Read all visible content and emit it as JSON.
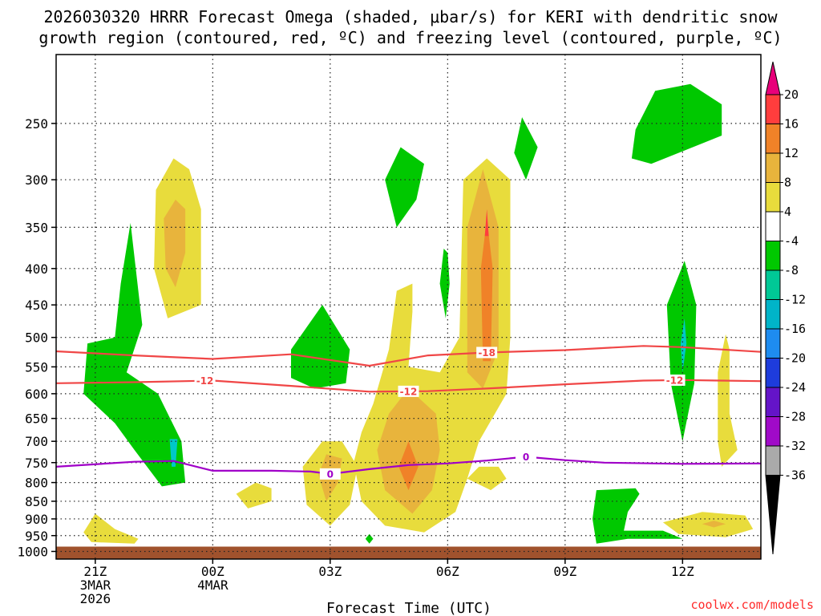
{
  "chart_data": {
    "type": "heatmap",
    "title_line1": "2026030320 HRRR Forecast Omega (shaded, μbar/s) for KERI with dendritic snow",
    "title_line2": "growth region (contoured, red, ºC) and freezing level (contoured, purple, ºC)",
    "xlabel": "Forecast Time (UTC)",
    "credit": "coolwx.com/models",
    "x_ticks": [
      {
        "hour": -3,
        "lines": [
          "21Z",
          "3MAR",
          "2026"
        ]
      },
      {
        "hour": 0,
        "lines": [
          "00Z",
          "4MAR"
        ]
      },
      {
        "hour": 3,
        "lines": [
          "03Z"
        ]
      },
      {
        "hour": 6,
        "lines": [
          "06Z"
        ]
      },
      {
        "hour": 9,
        "lines": [
          "09Z"
        ]
      },
      {
        "hour": 12,
        "lines": [
          "12Z"
        ]
      }
    ],
    "xlim_hours": [
      -4,
      14
    ],
    "y_levels_hPa": [
      "250",
      "300",
      "350",
      "400",
      "450",
      "500",
      "550",
      "600",
      "650",
      "700",
      "750",
      "800",
      "850",
      "900",
      "950",
      "1000"
    ],
    "ylim_hPa": [
      200,
      1025
    ],
    "colorbar": {
      "labels": [
        "20",
        "16",
        "12",
        "8",
        "4",
        "-4",
        "-8",
        "-12",
        "-16",
        "-20",
        "-24",
        "-28",
        "-32",
        "-36"
      ],
      "colors": [
        "#e8007a",
        "#ff3d3d",
        "#f08228",
        "#e8b43c",
        "#e8dc3c",
        "#ffffff",
        "#00c800",
        "#00c896",
        "#00b4c8",
        "#1e8cf0",
        "#1e3cdc",
        "#6414c8",
        "#a00ac8",
        "#aaaaaa",
        "#000000"
      ]
    },
    "contours": [
      {
        "name": "dendritic -18C",
        "label": "-18",
        "color": "#f04646",
        "label_hour": 7.0,
        "points": [
          [
            -4,
            523
          ],
          [
            -2,
            530
          ],
          [
            0,
            536
          ],
          [
            2,
            528
          ],
          [
            4,
            548
          ],
          [
            5.5,
            530
          ],
          [
            7,
            525
          ],
          [
            9,
            521
          ],
          [
            11,
            514
          ],
          [
            12,
            516
          ],
          [
            14,
            524
          ]
        ]
      },
      {
        "name": "dendritic -12C",
        "label": "-12",
        "color": "#f04646",
        "label_hour": -0.2,
        "label2_hour": 5.0,
        "label3_hour": 11.8,
        "points": [
          [
            -4,
            580
          ],
          [
            -2,
            578
          ],
          [
            0,
            575
          ],
          [
            2,
            585
          ],
          [
            4,
            596
          ],
          [
            5.5,
            595
          ],
          [
            7,
            590
          ],
          [
            9,
            582
          ],
          [
            11,
            575
          ],
          [
            12,
            574
          ],
          [
            14,
            576
          ]
        ]
      },
      {
        "name": "freezing level",
        "label": "0",
        "color": "#a000c8",
        "label_hour": 3.0,
        "label2_hour": 8.0,
        "points": [
          [
            -4,
            760
          ],
          [
            -2,
            748
          ],
          [
            -1,
            746
          ],
          [
            0,
            770
          ],
          [
            1.5,
            770
          ],
          [
            2.5,
            772
          ],
          [
            3,
            778
          ],
          [
            4,
            766
          ],
          [
            5,
            756
          ],
          [
            6,
            752
          ],
          [
            7,
            745
          ],
          [
            8,
            736
          ],
          [
            9,
            744
          ],
          [
            10,
            750
          ],
          [
            12,
            753
          ],
          [
            14,
            752
          ]
        ]
      }
    ],
    "omega_regions": [
      {
        "name": "green column 21Z",
        "value": -4,
        "points": [
          [
            -2.1,
            345
          ],
          [
            -2.35,
            420
          ],
          [
            -2.5,
            500
          ],
          [
            -3.2,
            510
          ],
          [
            -3.3,
            600
          ],
          [
            -2.5,
            660
          ],
          [
            -2,
            720
          ],
          [
            -1.3,
            810
          ],
          [
            -0.7,
            800
          ],
          [
            -0.8,
            700
          ],
          [
            -1.4,
            600
          ],
          [
            -2.2,
            560
          ],
          [
            -1.8,
            480
          ]
        ]
      },
      {
        "name": "cyan 21Z",
        "value": -12,
        "points": [
          [
            -1.1,
            695
          ],
          [
            -1.05,
            760
          ],
          [
            -0.95,
            760
          ],
          [
            -0.9,
            695
          ]
        ]
      },
      {
        "name": "yellow 23Z aloft",
        "value": 4,
        "points": [
          [
            -1.0,
            280
          ],
          [
            -1.45,
            310
          ],
          [
            -1.5,
            400
          ],
          [
            -1.15,
            470
          ],
          [
            -0.3,
            450
          ],
          [
            -0.3,
            330
          ],
          [
            -0.6,
            290
          ]
        ]
      },
      {
        "name": "orange 23Z aloft",
        "value": 8,
        "points": [
          [
            -0.95,
            320
          ],
          [
            -1.25,
            340
          ],
          [
            -1.2,
            400
          ],
          [
            -0.95,
            425
          ],
          [
            -0.7,
            380
          ],
          [
            -0.7,
            330
          ]
        ]
      },
      {
        "name": "yellow 21Z low",
        "value": 4,
        "points": [
          [
            -3.0,
            885
          ],
          [
            -3.3,
            940
          ],
          [
            -3.1,
            970
          ],
          [
            -2.0,
            975
          ],
          [
            -1.9,
            960
          ],
          [
            -2.5,
            930
          ]
        ]
      },
      {
        "name": "yellow 01Z",
        "value": 4,
        "points": [
          [
            1.1,
            800
          ],
          [
            0.6,
            830
          ],
          [
            0.9,
            870
          ],
          [
            1.5,
            850
          ],
          [
            1.5,
            815
          ]
        ]
      },
      {
        "name": "green 03Z aloft",
        "value": -4,
        "points": [
          [
            2.8,
            450
          ],
          [
            2.0,
            520
          ],
          [
            2.0,
            570
          ],
          [
            2.6,
            590
          ],
          [
            3.4,
            580
          ],
          [
            3.5,
            520
          ]
        ]
      },
      {
        "name": "yellow 03Z",
        "value": 4,
        "points": [
          [
            2.8,
            700
          ],
          [
            2.3,
            760
          ],
          [
            2.4,
            860
          ],
          [
            3.0,
            920
          ],
          [
            3.5,
            860
          ],
          [
            3.7,
            760
          ],
          [
            3.3,
            700
          ]
        ]
      },
      {
        "name": "orange 03Z",
        "value": 8,
        "points": [
          [
            2.9,
            730
          ],
          [
            2.7,
            780
          ],
          [
            2.9,
            850
          ],
          [
            3.2,
            800
          ],
          [
            3.3,
            740
          ]
        ]
      },
      {
        "name": "green 04Z pt",
        "value": -4,
        "points": [
          [
            4.0,
            945
          ],
          [
            3.9,
            960
          ],
          [
            4.0,
            975
          ],
          [
            4.1,
            960
          ]
        ]
      },
      {
        "name": "green 05Z aloft",
        "value": -4,
        "points": [
          [
            4.8,
            270
          ],
          [
            4.4,
            300
          ],
          [
            4.7,
            350
          ],
          [
            5.2,
            320
          ],
          [
            5.4,
            285
          ]
        ]
      },
      {
        "name": "green 06Z thin",
        "value": -4,
        "points": [
          [
            5.9,
            375
          ],
          [
            5.8,
            420
          ],
          [
            5.95,
            470
          ],
          [
            6.05,
            420
          ],
          [
            6.0,
            380
          ]
        ]
      },
      {
        "name": "green 08Z aloft",
        "value": -4,
        "points": [
          [
            7.9,
            245
          ],
          [
            7.7,
            275
          ],
          [
            8.0,
            300
          ],
          [
            8.3,
            270
          ]
        ]
      },
      {
        "name": "yellow big plume",
        "value": 4,
        "points": [
          [
            4.7,
            430
          ],
          [
            4.5,
            520
          ],
          [
            4.1,
            620
          ],
          [
            3.8,
            680
          ],
          [
            3.6,
            750
          ],
          [
            3.8,
            850
          ],
          [
            4.4,
            920
          ],
          [
            5.4,
            940
          ],
          [
            6.2,
            880
          ],
          [
            6.5,
            790
          ],
          [
            6.8,
            700
          ],
          [
            7.5,
            600
          ],
          [
            7.6,
            500
          ],
          [
            7.6,
            300
          ],
          [
            7.0,
            280
          ],
          [
            6.4,
            300
          ],
          [
            6.3,
            500
          ],
          [
            5.8,
            560
          ],
          [
            5.0,
            550
          ],
          [
            5.1,
            460
          ],
          [
            5.1,
            420
          ]
        ]
      },
      {
        "name": "orange plume",
        "value": 8,
        "points": [
          [
            5.0,
            590
          ],
          [
            4.5,
            640
          ],
          [
            4.2,
            720
          ],
          [
            4.4,
            820
          ],
          [
            5.1,
            885
          ],
          [
            5.6,
            820
          ],
          [
            5.8,
            720
          ],
          [
            5.7,
            640
          ]
        ]
      },
      {
        "name": "orange plume upper",
        "value": 8,
        "points": [
          [
            6.9,
            290
          ],
          [
            6.5,
            350
          ],
          [
            6.5,
            560
          ],
          [
            6.9,
            590
          ],
          [
            7.3,
            520
          ],
          [
            7.3,
            350
          ]
        ]
      },
      {
        "name": "red low core",
        "value": 12,
        "points": [
          [
            5.0,
            700
          ],
          [
            4.75,
            760
          ],
          [
            5.0,
            820
          ],
          [
            5.25,
            760
          ]
        ]
      },
      {
        "name": "red upper core",
        "value": 12,
        "points": [
          [
            7.0,
            340
          ],
          [
            6.85,
            400
          ],
          [
            6.9,
            540
          ],
          [
            7.1,
            540
          ],
          [
            7.15,
            400
          ]
        ]
      },
      {
        "name": "dark red core",
        "value": 16,
        "points": [
          [
            7.0,
            330
          ],
          [
            6.95,
            360
          ],
          [
            7.05,
            360
          ]
        ]
      },
      {
        "name": "yellow 07Z low",
        "value": 4,
        "points": [
          [
            6.8,
            760
          ],
          [
            6.5,
            790
          ],
          [
            7.1,
            820
          ],
          [
            7.5,
            790
          ],
          [
            7.3,
            760
          ]
        ]
      },
      {
        "name": "green 11Z top",
        "value": -4,
        "points": [
          [
            11.3,
            225
          ],
          [
            10.8,
            255
          ],
          [
            10.7,
            280
          ],
          [
            11.2,
            285
          ],
          [
            13.0,
            260
          ],
          [
            13.0,
            235
          ],
          [
            12.2,
            220
          ]
        ]
      },
      {
        "name": "green 12Z column",
        "value": -4,
        "points": [
          [
            12.05,
            390
          ],
          [
            11.6,
            450
          ],
          [
            11.7,
            580
          ],
          [
            12.0,
            700
          ],
          [
            12.3,
            580
          ],
          [
            12.35,
            450
          ]
        ]
      },
      {
        "name": "cyan 12Z",
        "value": -12,
        "points": [
          [
            12.05,
            470
          ],
          [
            11.95,
            510
          ],
          [
            12.0,
            560
          ],
          [
            12.1,
            510
          ]
        ]
      },
      {
        "name": "yellow 13Z thin",
        "value": 4,
        "points": [
          [
            13.1,
            495
          ],
          [
            12.9,
            560
          ],
          [
            12.9,
            700
          ],
          [
            13.0,
            760
          ],
          [
            13.4,
            720
          ],
          [
            13.2,
            640
          ],
          [
            13.2,
            520
          ]
        ]
      },
      {
        "name": "green 10Z low",
        "value": -4,
        "points": [
          [
            9.8,
            820
          ],
          [
            9.7,
            900
          ],
          [
            9.8,
            975
          ],
          [
            10.6,
            960
          ],
          [
            12.0,
            960
          ],
          [
            11.5,
            935
          ],
          [
            10.5,
            935
          ],
          [
            10.6,
            880
          ],
          [
            10.9,
            830
          ],
          [
            10.8,
            815
          ]
        ]
      },
      {
        "name": "yellow 13Z low",
        "value": 4,
        "points": [
          [
            12.5,
            880
          ],
          [
            11.5,
            910
          ],
          [
            11.9,
            945
          ],
          [
            13.1,
            955
          ],
          [
            13.8,
            930
          ],
          [
            13.6,
            890
          ]
        ]
      },
      {
        "name": "orange 13Z low",
        "value": 8,
        "points": [
          [
            12.8,
            905
          ],
          [
            12.5,
            915
          ],
          [
            12.8,
            925
          ],
          [
            13.1,
            915
          ]
        ]
      }
    ]
  }
}
